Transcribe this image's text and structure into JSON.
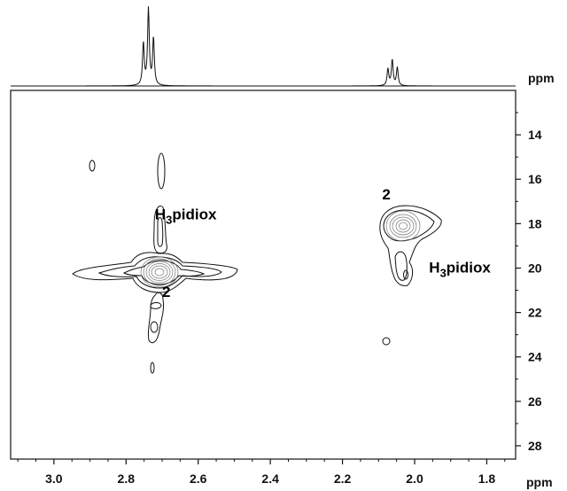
{
  "chart_data": {
    "type": "2D NMR contour plot",
    "x_axis": {
      "unit_label": "ppm",
      "range": [
        3.12,
        1.72
      ],
      "ticks": [
        "3.0",
        "2.8",
        "2.6",
        "2.4",
        "2.2",
        "2.0",
        "1.8"
      ],
      "reversed": true
    },
    "y_axis": {
      "unit_label": "ppm",
      "range": [
        12,
        28.6
      ],
      "ticks": [
        "14",
        "16",
        "18",
        "20",
        "22",
        "24",
        "26",
        "28"
      ],
      "reversed": true,
      "side": "right"
    },
    "projection_1d": {
      "position": "top",
      "unit_label": "ppm",
      "peaks": [
        {
          "x": 2.752,
          "height": 0.55
        },
        {
          "x": 2.738,
          "height": 1.0
        },
        {
          "x": 2.724,
          "height": 0.62
        },
        {
          "x": 2.074,
          "height": 0.22
        },
        {
          "x": 2.062,
          "height": 0.34
        },
        {
          "x": 2.048,
          "height": 0.24
        }
      ]
    },
    "cross_peaks": [
      {
        "x": 2.735,
        "y": 20.2,
        "label": "2"
      },
      {
        "x": 2.735,
        "y": 18.0,
        "label": "H3pidiox"
      },
      {
        "x": 2.055,
        "y": 18.1,
        "label": "2"
      },
      {
        "x": 2.045,
        "y": 20.1,
        "label": "H3pidiox"
      }
    ],
    "annotations": [
      {
        "text": "2",
        "x": 2.7,
        "y": 21.3
      },
      {
        "text": "H",
        "sub": "3",
        "rest": "pidiox",
        "x": 2.72,
        "y": 17.8
      },
      {
        "text": "2",
        "x": 2.09,
        "y": 16.9
      },
      {
        "text": "H",
        "sub": "3",
        "rest": "pidiox",
        "x": 1.96,
        "y": 20.2
      }
    ],
    "grid": false
  }
}
